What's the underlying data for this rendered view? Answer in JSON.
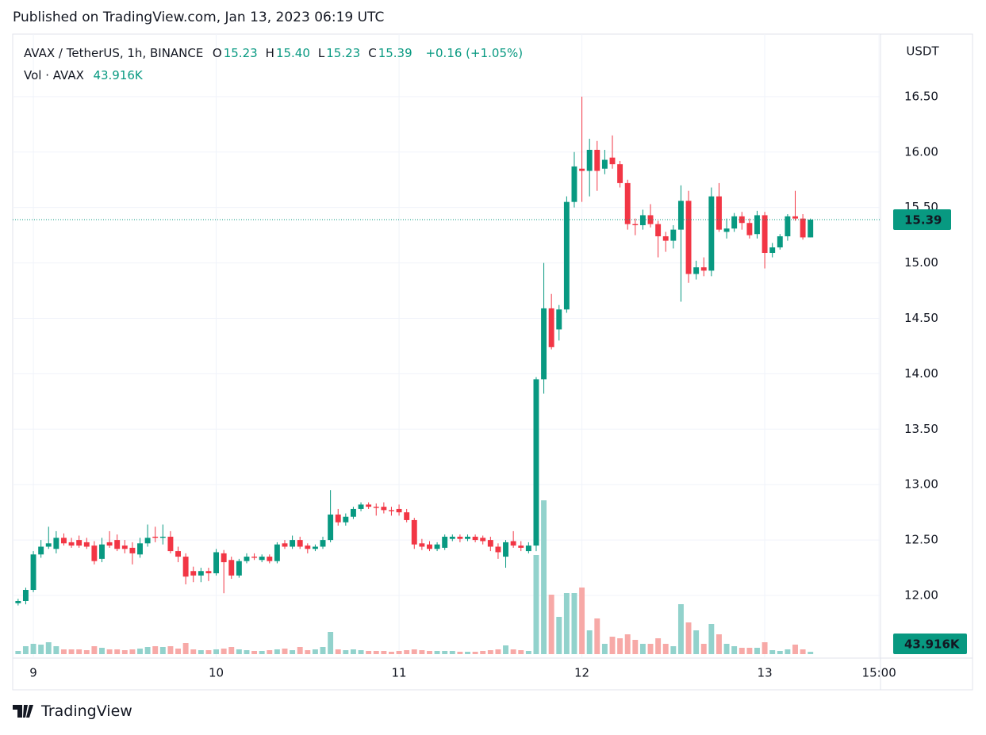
{
  "header": {
    "published": "Published on TradingView.com, Jan 13, 2023 06:19 UTC"
  },
  "footer": {
    "brand": "TradingView"
  },
  "chart_data": {
    "type": "candlestick",
    "symbol": "AVAX / TetherUS, 1h, BINANCE",
    "ohlc_legend": [
      {
        "label": "O",
        "value": "15.23"
      },
      {
        "label": "H",
        "value": "15.40"
      },
      {
        "label": "L",
        "value": "15.23"
      },
      {
        "label": "C",
        "value": "15.39"
      }
    ],
    "change": "+0.16 (+1.05%)",
    "volume_legend": {
      "label": "Vol · AVAX",
      "value": "43.916K"
    },
    "y_axis_label": "USDT",
    "last_labels": {
      "price": "15.39",
      "volume": "43.916K"
    },
    "up_color": "#089981",
    "down_color": "#f23645",
    "volume_up_color": "#92d2cc",
    "volume_down_color": "#f7a9a7",
    "grid": true,
    "xlim": [
      8.887,
      13.633
    ],
    "xticks": [
      9,
      10,
      11,
      12,
      13,
      {
        "value": 13.625,
        "label": "15:00"
      }
    ],
    "ylim": [
      11.435,
      17.064
    ],
    "yticks": [
      {
        "value": 12,
        "label": "12.00"
      },
      {
        "value": 12.5,
        "label": "12.50"
      },
      {
        "value": 13,
        "label": "13.00"
      },
      {
        "value": 13.5,
        "label": "13.50"
      },
      {
        "value": 14,
        "label": "14.00"
      },
      {
        "value": 14.5,
        "label": "14.50"
      },
      {
        "value": 15,
        "label": "15.00"
      },
      {
        "value": 15.5,
        "label": "15.50"
      },
      {
        "value": 16,
        "label": "16.00"
      },
      {
        "value": 16.5,
        "label": "16.50"
      }
    ],
    "x": [
      8.9167,
      8.9583,
      9,
      9.0417,
      9.0833,
      9.125,
      9.1667,
      9.2083,
      9.25,
      9.2917,
      9.3333,
      9.375,
      9.4167,
      9.4583,
      9.5,
      9.5417,
      9.5833,
      9.625,
      9.6667,
      9.7083,
      9.75,
      9.7917,
      9.8333,
      9.875,
      9.9167,
      9.9583,
      10,
      10.0417,
      10.0833,
      10.125,
      10.1667,
      10.2083,
      10.25,
      10.2917,
      10.3333,
      10.375,
      10.4167,
      10.4583,
      10.5,
      10.5417,
      10.5833,
      10.625,
      10.6667,
      10.7083,
      10.75,
      10.7917,
      10.8333,
      10.875,
      10.9167,
      10.9583,
      11,
      11.0417,
      11.0833,
      11.125,
      11.1667,
      11.2083,
      11.25,
      11.2917,
      11.3333,
      11.375,
      11.4167,
      11.4583,
      11.5,
      11.5417,
      11.5833,
      11.625,
      11.6667,
      11.7083,
      11.75,
      11.7917,
      11.8333,
      11.875,
      11.9167,
      11.9583,
      12,
      12.0417,
      12.0833,
      12.125,
      12.1667,
      12.2083,
      12.25,
      12.2917,
      12.3333,
      12.375,
      12.4167,
      12.4583,
      12.5,
      12.5417,
      12.5833,
      12.625,
      12.6667,
      12.7083,
      12.75,
      12.7917,
      12.8333,
      12.875,
      12.9167,
      12.9583,
      13,
      13.0417,
      13.0833,
      13.125,
      13.1667,
      13.2083,
      13.25
    ],
    "open": [
      11.93,
      11.95,
      12.05,
      12.37,
      12.44,
      12.42,
      12.52,
      12.48,
      12.5,
      12.48,
      12.45,
      12.33,
      12.48,
      12.5,
      12.45,
      12.43,
      12.37,
      12.47,
      12.53,
      12.52,
      12.53,
      12.4,
      12.35,
      12.22,
      12.18,
      12.22,
      12.2,
      12.38,
      12.32,
      12.18,
      12.31,
      12.35,
      12.32,
      12.35,
      12.31,
      12.47,
      12.44,
      12.5,
      12.45,
      12.42,
      12.44,
      12.5,
      12.73,
      12.66,
      12.71,
      12.78,
      12.82,
      12.8,
      12.8,
      12.77,
      12.78,
      12.75,
      12.68,
      12.47,
      12.46,
      12.42,
      12.43,
      12.51,
      12.53,
      12.51,
      12.53,
      12.52,
      12.5,
      12.44,
      12.35,
      12.49,
      12.45,
      12.4,
      12.45,
      13.95,
      14.59,
      14.4,
      14.58,
      15.55,
      15.85,
      15.83,
      16.02,
      15.85,
      15.95,
      15.89,
      15.72,
      15.35,
      15.34,
      15.43,
      15.35,
      15.24,
      15.2,
      15.3,
      15.56,
      14.9,
      14.96,
      14.93,
      15.6,
      15.28,
      15.31,
      15.42,
      15.36,
      15.26,
      15.43,
      15.09,
      15.14,
      15.24,
      15.42,
      15.4,
      15.23
    ],
    "high": [
      11.97,
      12.07,
      12.4,
      12.5,
      12.62,
      12.58,
      12.56,
      12.52,
      12.54,
      12.52,
      12.49,
      12.52,
      12.58,
      12.55,
      12.5,
      12.48,
      12.52,
      12.64,
      12.62,
      12.64,
      12.58,
      12.44,
      12.38,
      12.26,
      12.25,
      12.25,
      12.42,
      12.41,
      12.35,
      12.33,
      12.38,
      12.38,
      12.37,
      12.37,
      12.48,
      12.5,
      12.54,
      12.53,
      12.47,
      12.46,
      12.53,
      12.95,
      12.78,
      12.74,
      12.8,
      12.84,
      12.84,
      12.83,
      12.84,
      12.8,
      12.82,
      12.78,
      12.7,
      12.51,
      12.49,
      12.48,
      12.55,
      12.55,
      12.55,
      12.55,
      12.55,
      12.54,
      12.53,
      12.47,
      12.5,
      12.58,
      12.49,
      12.48,
      13.97,
      15.0,
      14.72,
      14.62,
      15.6,
      16.0,
      16.5,
      16.12,
      16.1,
      16.02,
      16.15,
      15.92,
      15.75,
      15.4,
      15.48,
      15.53,
      15.38,
      15.28,
      15.34,
      15.7,
      15.65,
      15.02,
      15.05,
      15.68,
      15.72,
      15.4,
      15.45,
      15.46,
      15.4,
      15.47,
      15.46,
      15.18,
      15.26,
      15.44,
      15.65,
      15.44,
      15.4
    ],
    "low": [
      11.91,
      11.92,
      12.03,
      12.34,
      12.42,
      12.38,
      12.45,
      12.43,
      12.43,
      12.42,
      12.28,
      12.3,
      12.43,
      12.4,
      12.38,
      12.28,
      12.34,
      12.44,
      12.48,
      12.46,
      12.38,
      12.3,
      12.1,
      12.12,
      12.12,
      12.13,
      12.18,
      12.02,
      12.15,
      12.16,
      12.29,
      12.32,
      12.3,
      12.29,
      12.29,
      12.42,
      12.42,
      12.42,
      12.38,
      12.4,
      12.42,
      12.48,
      12.63,
      12.63,
      12.69,
      12.76,
      12.78,
      12.72,
      12.74,
      12.72,
      12.72,
      12.66,
      12.42,
      12.41,
      12.4,
      12.4,
      12.41,
      12.49,
      12.48,
      12.49,
      12.48,
      12.46,
      12.4,
      12.33,
      12.25,
      12.43,
      12.4,
      12.38,
      12.4,
      13.82,
      14.22,
      14.3,
      14.55,
      15.5,
      15.55,
      15.6,
      15.65,
      15.8,
      15.85,
      15.68,
      15.3,
      15.25,
      15.3,
      15.32,
      15.05,
      15.1,
      15.13,
      14.65,
      14.82,
      14.85,
      14.88,
      14.88,
      15.28,
      15.22,
      15.28,
      15.3,
      15.22,
      15.22,
      14.95,
      15.05,
      15.12,
      15.2,
      15.38,
      15.21,
      15.23
    ],
    "close": [
      11.95,
      12.05,
      12.37,
      12.44,
      12.47,
      12.52,
      12.47,
      12.45,
      12.45,
      12.44,
      12.31,
      12.46,
      12.45,
      12.42,
      12.42,
      12.38,
      12.47,
      12.52,
      12.52,
      12.53,
      12.4,
      12.35,
      12.17,
      12.18,
      12.22,
      12.2,
      12.39,
      12.3,
      12.18,
      12.31,
      12.35,
      12.34,
      12.35,
      12.31,
      12.46,
      12.44,
      12.5,
      12.44,
      12.42,
      12.44,
      12.5,
      12.73,
      12.66,
      12.71,
      12.78,
      12.82,
      12.8,
      12.79,
      12.77,
      12.76,
      12.75,
      12.68,
      12.46,
      12.44,
      12.42,
      12.46,
      12.53,
      12.53,
      12.51,
      12.53,
      12.5,
      12.49,
      12.44,
      12.39,
      12.48,
      12.45,
      12.43,
      12.45,
      13.95,
      14.59,
      14.24,
      14.58,
      15.55,
      15.87,
      15.83,
      16.02,
      15.83,
      15.93,
      15.89,
      15.72,
      15.35,
      15.34,
      15.43,
      15.35,
      15.24,
      15.2,
      15.3,
      15.56,
      14.9,
      14.96,
      14.93,
      15.6,
      15.3,
      15.31,
      15.42,
      15.36,
      15.25,
      15.43,
      15.09,
      15.14,
      15.24,
      15.42,
      15.4,
      15.23,
      15.39
    ],
    "volume": [
      60,
      150,
      195,
      180,
      225,
      150,
      90,
      90,
      90,
      75,
      150,
      120,
      90,
      90,
      75,
      90,
      105,
      135,
      150,
      135,
      150,
      105,
      210,
      90,
      75,
      75,
      90,
      105,
      135,
      90,
      75,
      60,
      60,
      75,
      90,
      105,
      75,
      135,
      75,
      90,
      135,
      420,
      90,
      75,
      90,
      75,
      60,
      60,
      60,
      45,
      60,
      75,
      90,
      75,
      60,
      60,
      60,
      60,
      45,
      45,
      45,
      60,
      75,
      90,
      165,
      90,
      75,
      60,
      1875,
      2910,
      1125,
      705,
      1155,
      1155,
      1260,
      450,
      675,
      195,
      330,
      300,
      375,
      270,
      195,
      195,
      300,
      195,
      150,
      945,
      600,
      450,
      195,
      570,
      375,
      195,
      150,
      120,
      120,
      120,
      225,
      75,
      60,
      90,
      180,
      90,
      43.916
    ]
  }
}
